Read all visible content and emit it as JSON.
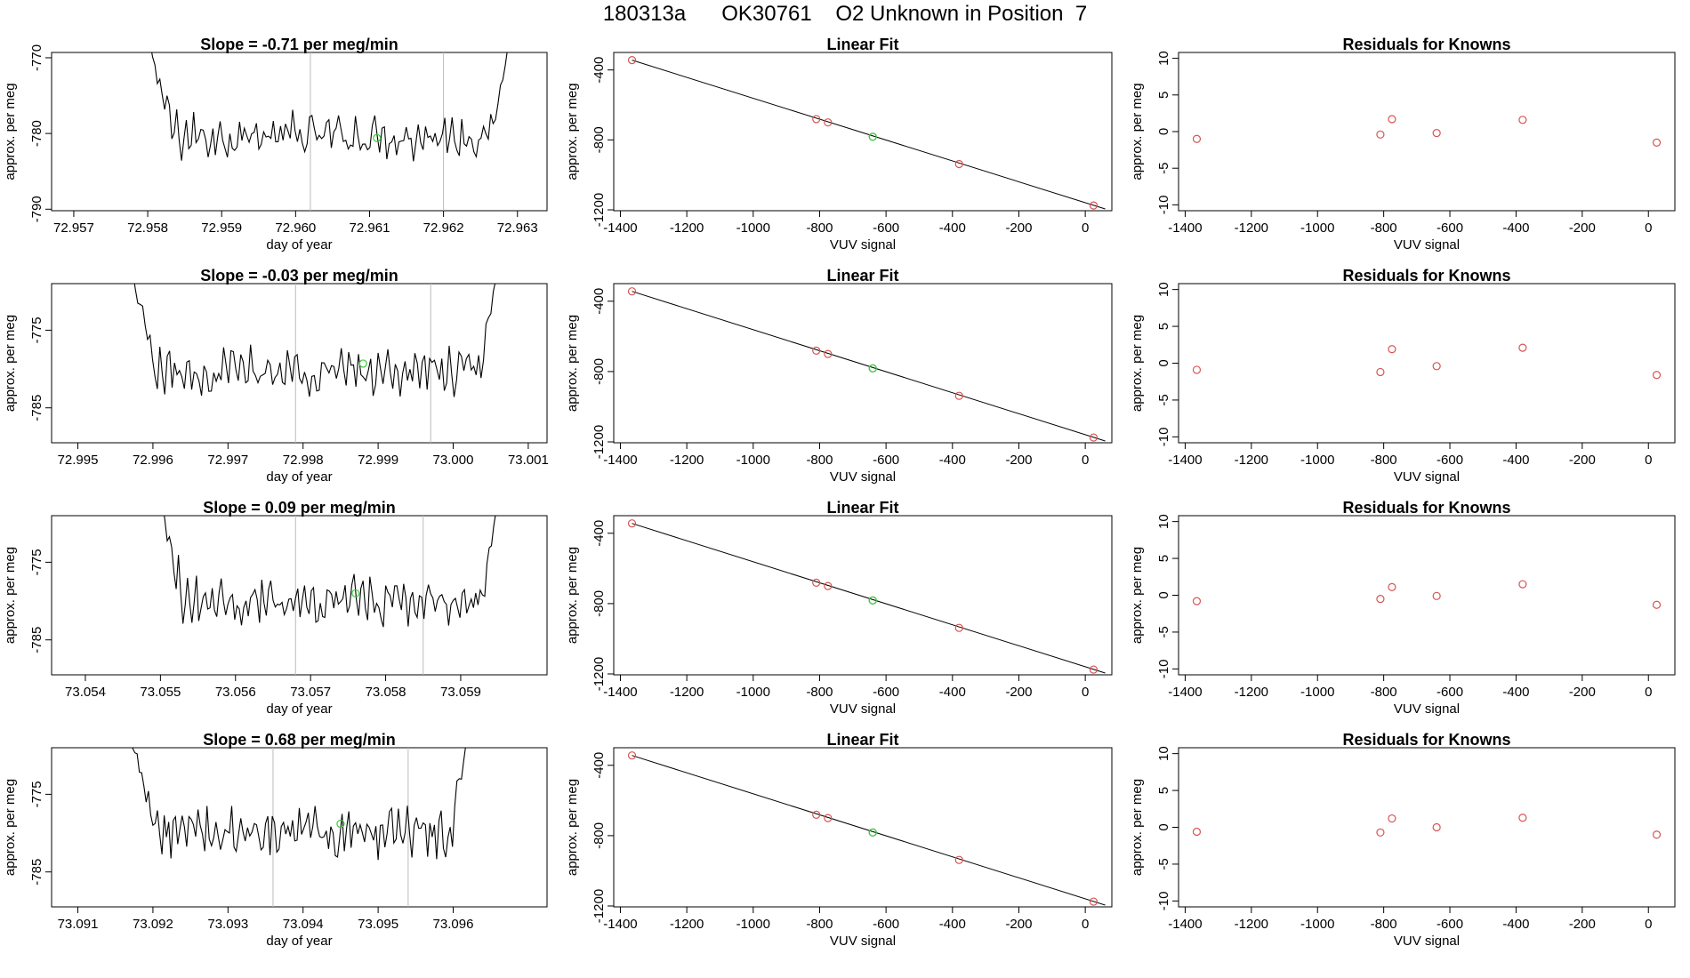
{
  "page_title": "180313a      OK30761    O2 Unknown in Position  7",
  "colors": {
    "trace": "#000000",
    "known_point": "#d9534f",
    "unknown_point": "#3cc83c",
    "vline": "#bbbbbb",
    "axis": "#000000"
  },
  "chart_data": [
    {
      "type": "line",
      "row": 0,
      "title": "Slope =  -0.71  per meg/min",
      "xlabel": "day of year",
      "ylabel": "approx. per meg",
      "xlim": [
        72.9567,
        72.9634
      ],
      "ylim": [
        -790.2,
        -769.3
      ],
      "xticks": [
        "72.957",
        "72.958",
        "72.959",
        "72.960",
        "72.961",
        "72.962",
        "72.963"
      ],
      "xtick_values": [
        72.957,
        72.958,
        72.959,
        72.96,
        72.961,
        72.962,
        72.963
      ],
      "yticks": [
        "-770",
        "-780",
        "-790"
      ],
      "ytick_values": [
        -770,
        -780,
        -790
      ],
      "vlines": [
        72.9602,
        72.962
      ],
      "green_point": {
        "x": 72.9611,
        "y": -780.6
      },
      "trace": {
        "x_start": 72.958,
        "x_end": 72.9629,
        "center": -780.3,
        "amplitude": 2.3
      }
    },
    {
      "type": "scatter",
      "row": 0,
      "title": "Linear Fit",
      "xlabel": "VUV signal",
      "ylabel": "approx. per meg",
      "xlim": [
        -1420,
        80
      ],
      "ylim": [
        -1205,
        -300
      ],
      "xticks": [
        "-1400",
        "-1200",
        "-1000",
        "-800",
        "-600",
        "-400",
        "-200",
        "0"
      ],
      "xtick_values": [
        -1400,
        -1200,
        -1000,
        -800,
        -600,
        -400,
        -200,
        0
      ],
      "yticks": [
        "-400",
        "-800",
        "-1200"
      ],
      "ytick_values": [
        -400,
        -800,
        -1200
      ],
      "points": [
        {
          "x": -1365,
          "y": -344
        },
        {
          "x": -810,
          "y": -681
        },
        {
          "x": -775,
          "y": -700
        },
        {
          "x": -380,
          "y": -938
        },
        {
          "x": 25,
          "y": -1175
        }
      ],
      "unknown_point": {
        "x": -640,
        "y": -782
      },
      "fit_line": {
        "x": [
          -1365,
          60
        ],
        "y": [
          -344,
          -1195
        ]
      }
    },
    {
      "type": "scatter",
      "row": 0,
      "title": "Residuals for Knowns",
      "xlabel": "VUV signal",
      "ylabel": "approx. per meg",
      "xlim": [
        -1420,
        80
      ],
      "ylim": [
        -10.8,
        10.8
      ],
      "xticks": [
        "-1400",
        "-1200",
        "-1000",
        "-800",
        "-600",
        "-400",
        "-200",
        "0"
      ],
      "xtick_values": [
        -1400,
        -1200,
        -1000,
        -800,
        -600,
        -400,
        -200,
        0
      ],
      "yticks": [
        "10",
        "5",
        "0",
        "-5",
        "-10"
      ],
      "ytick_values": [
        10,
        5,
        0,
        -5,
        -10
      ],
      "points": [
        {
          "x": -1365,
          "y": -1.0
        },
        {
          "x": -810,
          "y": -0.4
        },
        {
          "x": -775,
          "y": 1.7
        },
        {
          "x": -640,
          "y": -0.2
        },
        {
          "x": -380,
          "y": 1.6
        },
        {
          "x": 25,
          "y": -1.5
        }
      ]
    },
    {
      "type": "line",
      "row": 1,
      "title": "Slope =  -0.03  per meg/min",
      "xlabel": "day of year",
      "ylabel": "approx. per meg",
      "xlim": [
        72.99465,
        73.00125
      ],
      "ylim": [
        -789.5,
        -769.0
      ],
      "xticks": [
        "72.995",
        "72.996",
        "72.997",
        "72.998",
        "72.999",
        "73.000",
        "73.001"
      ],
      "xtick_values": [
        72.995,
        72.996,
        72.997,
        72.998,
        72.999,
        73.0,
        73.001
      ],
      "yticks": [
        "-775",
        "-785"
      ],
      "ytick_values": [
        -775,
        -785
      ],
      "vlines": [
        72.9979,
        72.9997
      ],
      "green_point": {
        "x": 72.9988,
        "y": -779.3
      },
      "trace": {
        "x_start": 72.9957,
        "x_end": 73.0006,
        "center": -780.3,
        "amplitude": 2.2
      }
    },
    {
      "type": "scatter",
      "row": 1,
      "title": "Linear Fit",
      "xlabel": "VUV signal",
      "ylabel": "approx. per meg",
      "xlim": [
        -1420,
        80
      ],
      "ylim": [
        -1205,
        -300
      ],
      "xticks": [
        "-1400",
        "-1200",
        "-1000",
        "-800",
        "-600",
        "-400",
        "-200",
        "0"
      ],
      "xtick_values": [
        -1400,
        -1200,
        -1000,
        -800,
        -600,
        -400,
        -200,
        0
      ],
      "yticks": [
        "-400",
        "-800",
        "-1200"
      ],
      "ytick_values": [
        -400,
        -800,
        -1200
      ],
      "points": [
        {
          "x": -1365,
          "y": -344
        },
        {
          "x": -810,
          "y": -681
        },
        {
          "x": -775,
          "y": -700
        },
        {
          "x": -380,
          "y": -938
        },
        {
          "x": 25,
          "y": -1175
        }
      ],
      "unknown_point": {
        "x": -640,
        "y": -782
      },
      "fit_line": {
        "x": [
          -1365,
          60
        ],
        "y": [
          -344,
          -1195
        ]
      }
    },
    {
      "type": "scatter",
      "row": 1,
      "title": "Residuals for Knowns",
      "xlabel": "VUV signal",
      "ylabel": "approx. per meg",
      "xlim": [
        -1420,
        80
      ],
      "ylim": [
        -10.8,
        10.8
      ],
      "xticks": [
        "-1400",
        "-1200",
        "-1000",
        "-800",
        "-600",
        "-400",
        "-200",
        "0"
      ],
      "xtick_values": [
        -1400,
        -1200,
        -1000,
        -800,
        -600,
        -400,
        -200,
        0
      ],
      "yticks": [
        "10",
        "5",
        "0",
        "-5",
        "-10"
      ],
      "ytick_values": [
        10,
        5,
        0,
        -5,
        -10
      ],
      "points": [
        {
          "x": -1365,
          "y": -0.9
        },
        {
          "x": -810,
          "y": -1.2
        },
        {
          "x": -775,
          "y": 1.9
        },
        {
          "x": -640,
          "y": -0.4
        },
        {
          "x": -380,
          "y": 2.1
        },
        {
          "x": 25,
          "y": -1.6
        }
      ]
    },
    {
      "type": "line",
      "row": 2,
      "title": "Slope =  0.09  per meg/min",
      "xlabel": "day of year",
      "ylabel": "approx. per meg",
      "xlim": [
        73.05355,
        73.06015
      ],
      "ylim": [
        -789.5,
        -769.0
      ],
      "xticks": [
        "73.054",
        "73.055",
        "73.056",
        "73.057",
        "73.058",
        "73.059"
      ],
      "xtick_values": [
        73.054,
        73.055,
        73.056,
        73.057,
        73.058,
        73.059
      ],
      "yticks": [
        "-775",
        "-785"
      ],
      "ytick_values": [
        -775,
        -785
      ],
      "vlines": [
        73.0568,
        73.0585
      ],
      "green_point": {
        "x": 73.0576,
        "y": -779.0
      },
      "trace": {
        "x_start": 73.055,
        "x_end": 73.0595,
        "center": -780.0,
        "amplitude": 2.2
      }
    },
    {
      "type": "scatter",
      "row": 2,
      "title": "Linear Fit",
      "xlabel": "VUV signal",
      "ylabel": "approx. per meg",
      "xlim": [
        -1420,
        80
      ],
      "ylim": [
        -1205,
        -300
      ],
      "xticks": [
        "-1400",
        "-1200",
        "-1000",
        "-800",
        "-600",
        "-400",
        "-200",
        "0"
      ],
      "xtick_values": [
        -1400,
        -1200,
        -1000,
        -800,
        -600,
        -400,
        -200,
        0
      ],
      "yticks": [
        "-400",
        "-800",
        "-1200"
      ],
      "ytick_values": [
        -400,
        -800,
        -1200
      ],
      "points": [
        {
          "x": -1365,
          "y": -344
        },
        {
          "x": -810,
          "y": -681
        },
        {
          "x": -775,
          "y": -700
        },
        {
          "x": -380,
          "y": -938
        },
        {
          "x": 25,
          "y": -1175
        }
      ],
      "unknown_point": {
        "x": -640,
        "y": -782
      },
      "fit_line": {
        "x": [
          -1365,
          60
        ],
        "y": [
          -344,
          -1195
        ]
      }
    },
    {
      "type": "scatter",
      "row": 2,
      "title": "Residuals for Knowns",
      "xlabel": "VUV signal",
      "ylabel": "approx. per meg",
      "xlim": [
        -1420,
        80
      ],
      "ylim": [
        -10.8,
        10.8
      ],
      "xticks": [
        "-1400",
        "-1200",
        "-1000",
        "-800",
        "-600",
        "-400",
        "-200",
        "0"
      ],
      "xtick_values": [
        -1400,
        -1200,
        -1000,
        -800,
        -600,
        -400,
        -200,
        0
      ],
      "yticks": [
        "10",
        "5",
        "0",
        "-5",
        "-10"
      ],
      "ytick_values": [
        10,
        5,
        0,
        -5,
        -10
      ],
      "points": [
        {
          "x": -1365,
          "y": -0.8
        },
        {
          "x": -810,
          "y": -0.5
        },
        {
          "x": -775,
          "y": 1.1
        },
        {
          "x": -640,
          "y": -0.1
        },
        {
          "x": -380,
          "y": 1.5
        },
        {
          "x": 25,
          "y": -1.3
        }
      ]
    },
    {
      "type": "line",
      "row": 3,
      "title": "Slope =  0.68  per meg/min",
      "xlabel": "day of year",
      "ylabel": "approx. per meg",
      "xlim": [
        73.09065,
        73.09725
      ],
      "ylim": [
        -789.5,
        -769.0
      ],
      "xticks": [
        "73.091",
        "73.092",
        "73.093",
        "73.094",
        "73.095",
        "73.096"
      ],
      "xtick_values": [
        73.091,
        73.092,
        73.093,
        73.094,
        73.095,
        73.096
      ],
      "yticks": [
        "-775",
        "-785"
      ],
      "ytick_values": [
        -775,
        -785
      ],
      "vlines": [
        73.0936,
        73.0954
      ],
      "green_point": {
        "x": 73.0945,
        "y": -778.8
      },
      "trace": {
        "x_start": 73.0917,
        "x_end": 73.0962,
        "center": -780.0,
        "amplitude": 2.3
      }
    },
    {
      "type": "scatter",
      "row": 3,
      "title": "Linear Fit",
      "xlabel": "VUV signal",
      "ylabel": "approx. per meg",
      "xlim": [
        -1420,
        80
      ],
      "ylim": [
        -1205,
        -300
      ],
      "xticks": [
        "-1400",
        "-1200",
        "-1000",
        "-800",
        "-600",
        "-400",
        "-200",
        "0"
      ],
      "xtick_values": [
        -1400,
        -1200,
        -1000,
        -800,
        -600,
        -400,
        -200,
        0
      ],
      "yticks": [
        "-400",
        "-800",
        "-1200"
      ],
      "ytick_values": [
        -400,
        -800,
        -1200
      ],
      "points": [
        {
          "x": -1365,
          "y": -344
        },
        {
          "x": -810,
          "y": -681
        },
        {
          "x": -775,
          "y": -700
        },
        {
          "x": -380,
          "y": -938
        },
        {
          "x": 25,
          "y": -1175
        }
      ],
      "unknown_point": {
        "x": -640,
        "y": -782
      },
      "fit_line": {
        "x": [
          -1365,
          60
        ],
        "y": [
          -344,
          -1195
        ]
      }
    },
    {
      "type": "scatter",
      "row": 3,
      "title": "Residuals for Knowns",
      "xlabel": "VUV signal",
      "ylabel": "approx. per meg",
      "xlim": [
        -1420,
        80
      ],
      "ylim": [
        -10.8,
        10.8
      ],
      "xticks": [
        "-1400",
        "-1200",
        "-1000",
        "-800",
        "-600",
        "-400",
        "-200",
        "0"
      ],
      "xtick_values": [
        -1400,
        -1200,
        -1000,
        -800,
        -600,
        -400,
        -200,
        0
      ],
      "yticks": [
        "10",
        "5",
        "0",
        "-5",
        "-10"
      ],
      "ytick_values": [
        10,
        5,
        0,
        -5,
        -10
      ],
      "points": [
        {
          "x": -1365,
          "y": -0.6
        },
        {
          "x": -810,
          "y": -0.7
        },
        {
          "x": -775,
          "y": 1.2
        },
        {
          "x": -640,
          "y": 0.0
        },
        {
          "x": -380,
          "y": 1.3
        },
        {
          "x": 25,
          "y": -1.0
        }
      ]
    }
  ]
}
